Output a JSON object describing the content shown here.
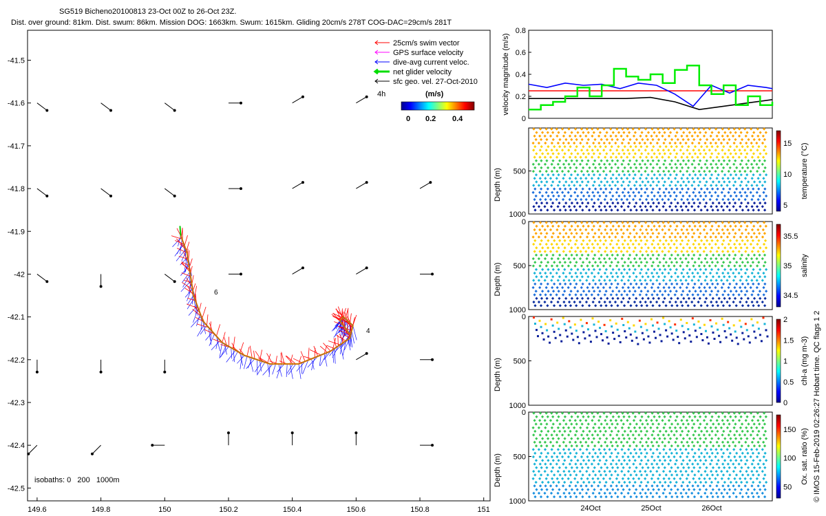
{
  "header": {
    "title_line1": "SG519 Bicheno20100813 23-Oct 00Z to 26-Oct 23Z.",
    "title_line2": "Dist. over ground: 81km. Dist. swum: 86km. Mission DOG: 1663km. Swum: 1615km. Gliding 20cm/s 278T COG-DAC=29cm/s 281T"
  },
  "footer_vertical": "© IMOS 15-Feb-2019 02:26:27 Hobart time. QC flags 1  2",
  "chart_data": [
    {
      "type": "scatter",
      "id": "track-map",
      "x_ticks": [
        "149.6",
        "149.8",
        "150",
        "150.2",
        "150.4",
        "150.6",
        "150.8",
        "151"
      ],
      "y_ticks": [
        "-41.5",
        "-41.6",
        "-41.7",
        "-41.8",
        "-41.9",
        "-42",
        "-42.1",
        "-42.2",
        "-42.3",
        "-42.4",
        "-42.5"
      ],
      "xlim": [
        149.57,
        151.02
      ],
      "ylim": [
        -42.53,
        -41.43
      ],
      "legend": [
        {
          "label": "25cm/s swim vector",
          "color": "#ff0000"
        },
        {
          "label": "GPS surface velocity",
          "color": "#ff00ff"
        },
        {
          "label": "dive-avg current veloc.",
          "color": "#0000ff"
        },
        {
          "label": "net glider velocity",
          "color": "#00dd00"
        },
        {
          "label": "sfc geo. vel. 27-Oct-2010",
          "color": "#000000"
        }
      ],
      "legend_placement": "top-right",
      "vel_key_label": "4h",
      "colorbar": {
        "title": "(m/s)",
        "ticks": [
          "0",
          "0.2",
          "0.4"
        ],
        "range": [
          0,
          0.5
        ]
      },
      "isobaths_note": "isobaths: 0   200   1000m",
      "annotations": [
        "6",
        "4"
      ],
      "track": [
        [
          150.05,
          -41.91
        ],
        [
          150.07,
          -41.95
        ],
        [
          150.08,
          -42.0
        ],
        [
          150.09,
          -42.05
        ],
        [
          150.12,
          -42.11
        ],
        [
          150.18,
          -42.16
        ],
        [
          150.25,
          -42.19
        ],
        [
          150.33,
          -42.21
        ],
        [
          150.42,
          -42.21
        ],
        [
          150.52,
          -42.18
        ],
        [
          150.58,
          -42.15
        ],
        [
          150.59,
          -42.12
        ],
        [
          150.56,
          -42.1
        ],
        [
          150.55,
          -42.11
        ],
        [
          150.58,
          -42.14
        ]
      ],
      "geo_vectors": [
        {
          "x": 149.6,
          "y": -41.6,
          "dir": "SE"
        },
        {
          "x": 149.8,
          "y": -41.6,
          "dir": "SE"
        },
        {
          "x": 150.0,
          "y": -41.6,
          "dir": "SE"
        },
        {
          "x": 150.2,
          "y": -41.6,
          "dir": "E"
        },
        {
          "x": 150.4,
          "y": -41.6,
          "dir": "NE"
        },
        {
          "x": 150.6,
          "y": -41.6,
          "dir": "NE"
        },
        {
          "x": 149.6,
          "y": -41.8,
          "dir": "SE"
        },
        {
          "x": 149.8,
          "y": -41.8,
          "dir": "SE"
        },
        {
          "x": 150.0,
          "y": -41.8,
          "dir": "SE"
        },
        {
          "x": 150.2,
          "y": -41.8,
          "dir": "E"
        },
        {
          "x": 150.4,
          "y": -41.8,
          "dir": "NE"
        },
        {
          "x": 150.6,
          "y": -41.8,
          "dir": "NE"
        },
        {
          "x": 150.8,
          "y": -41.8,
          "dir": "NE"
        },
        {
          "x": 149.6,
          "y": -42.0,
          "dir": "SE"
        },
        {
          "x": 149.8,
          "y": -42.0,
          "dir": "S"
        },
        {
          "x": 150.0,
          "y": -42.0,
          "dir": "SE"
        },
        {
          "x": 150.2,
          "y": -42.0,
          "dir": "E"
        },
        {
          "x": 150.4,
          "y": -42.0,
          "dir": "NE"
        },
        {
          "x": 150.6,
          "y": -42.0,
          "dir": "NE"
        },
        {
          "x": 150.8,
          "y": -42.0,
          "dir": "E"
        },
        {
          "x": 149.6,
          "y": -42.2,
          "dir": "S"
        },
        {
          "x": 149.8,
          "y": -42.2,
          "dir": "S"
        },
        {
          "x": 150.0,
          "y": -42.2,
          "dir": "S"
        },
        {
          "x": 150.6,
          "y": -42.2,
          "dir": "NE"
        },
        {
          "x": 150.8,
          "y": -42.2,
          "dir": "E"
        },
        {
          "x": 149.6,
          "y": -42.4,
          "dir": "SW"
        },
        {
          "x": 149.8,
          "y": -42.4,
          "dir": "SW"
        },
        {
          "x": 150.0,
          "y": -42.4,
          "dir": "W"
        },
        {
          "x": 150.2,
          "y": -42.4,
          "dir": "N"
        },
        {
          "x": 150.4,
          "y": -42.4,
          "dir": "N"
        },
        {
          "x": 150.6,
          "y": -42.4,
          "dir": "N"
        },
        {
          "x": 150.8,
          "y": -42.4,
          "dir": "E"
        }
      ]
    },
    {
      "type": "line",
      "id": "velocity-timeseries",
      "ylabel": "velocity magnitude (m/s)",
      "y_ticks": [
        "0",
        "0.2",
        "0.4",
        "0.6",
        "0.8"
      ],
      "ylim": [
        0,
        0.8
      ],
      "xlim": [
        0,
        4
      ],
      "series": [
        {
          "color": "#ff0000",
          "x": [
            0,
            4
          ],
          "values": [
            0.25,
            0.25
          ]
        },
        {
          "color": "#0000ff",
          "x": [
            0,
            0.3,
            0.6,
            0.9,
            1.2,
            1.5,
            1.8,
            2.1,
            2.4,
            2.7,
            3.0,
            3.3,
            3.6,
            3.9,
            4.0
          ],
          "values": [
            0.31,
            0.28,
            0.32,
            0.3,
            0.31,
            0.27,
            0.32,
            0.3,
            0.22,
            0.11,
            0.3,
            0.23,
            0.3,
            0.28,
            0.27
          ]
        },
        {
          "color": "#000000",
          "x": [
            0,
            0.8,
            1.6,
            2.0,
            2.4,
            2.8,
            3.2,
            3.6,
            4.0
          ],
          "values": [
            0.18,
            0.18,
            0.18,
            0.19,
            0.15,
            0.08,
            0.11,
            0.14,
            0.17
          ]
        },
        {
          "color": "#00ee00",
          "x": [
            0,
            0.2,
            0.4,
            0.6,
            0.8,
            1.0,
            1.2,
            1.4,
            1.6,
            1.8,
            2.0,
            2.2,
            2.4,
            2.6,
            2.8,
            3.0,
            3.2,
            3.4,
            3.6,
            3.8,
            4.0
          ],
          "values": [
            0.08,
            0.12,
            0.15,
            0.2,
            0.28,
            0.2,
            0.3,
            0.45,
            0.38,
            0.35,
            0.4,
            0.32,
            0.44,
            0.48,
            0.3,
            0.22,
            0.3,
            0.12,
            0.2,
            0.12,
            0.15
          ]
        }
      ]
    },
    {
      "type": "scatter",
      "id": "temperature-section",
      "ylabel": "Depth (m)",
      "y_ticks": [
        "500",
        "1000"
      ],
      "ylim": [
        1000,
        0
      ],
      "colorbar": {
        "label": "temperature (°C)",
        "ticks": [
          "5",
          "10",
          "15"
        ],
        "range": [
          4,
          17
        ]
      }
    },
    {
      "type": "scatter",
      "id": "salinity-section",
      "ylabel": "Depth (m)",
      "y_ticks": [
        "0",
        "500",
        "1000"
      ],
      "ylim": [
        1000,
        0
      ],
      "colorbar": {
        "label": "salinity",
        "ticks": [
          "34.5",
          "35",
          "35.5"
        ],
        "range": [
          34.3,
          35.7
        ]
      }
    },
    {
      "type": "scatter",
      "id": "chla-section",
      "ylabel": "Depth (m)",
      "y_ticks": [
        "0",
        "500",
        "1000"
      ],
      "ylim": [
        1000,
        0
      ],
      "colorbar": {
        "label": "chl-a (mg m-3)",
        "ticks": [
          "0",
          "0.5",
          "1",
          "1.5",
          "2"
        ],
        "range": [
          0,
          2
        ]
      }
    },
    {
      "type": "scatter",
      "id": "oxygen-section",
      "ylabel": "Depth (m)",
      "y_ticks": [
        "0",
        "500",
        "1000"
      ],
      "x_ticks": [
        "24Oct",
        "25Oct",
        "26Oct"
      ],
      "ylim": [
        1000,
        0
      ],
      "colorbar": {
        "label": "Ox. sat. ratio (%)",
        "ticks": [
          "50",
          "100",
          "150"
        ],
        "range": [
          30,
          175
        ]
      }
    }
  ]
}
